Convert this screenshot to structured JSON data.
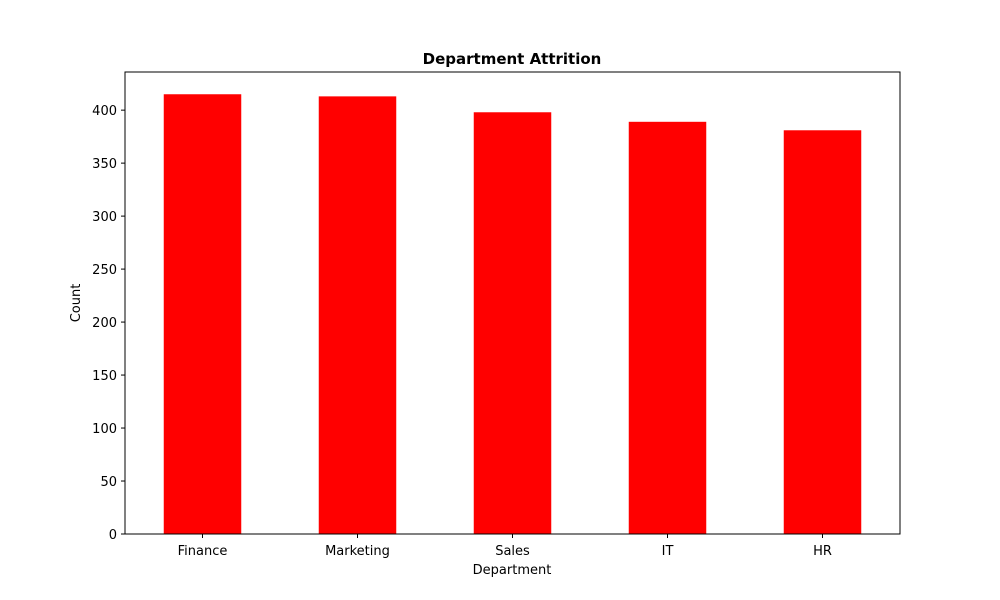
{
  "chart_data": {
    "type": "bar",
    "title": "Department Attrition",
    "xlabel": "Department",
    "ylabel": "Count",
    "categories": [
      "Finance",
      "Marketing",
      "Sales",
      "IT",
      "HR"
    ],
    "values": [
      415,
      413,
      398,
      389,
      381
    ],
    "ylim": [
      0,
      436
    ],
    "yticks": [
      0,
      50,
      100,
      150,
      200,
      250,
      300,
      350,
      400
    ],
    "bar_color": "#ff0000",
    "grid": false,
    "legend": "none"
  }
}
